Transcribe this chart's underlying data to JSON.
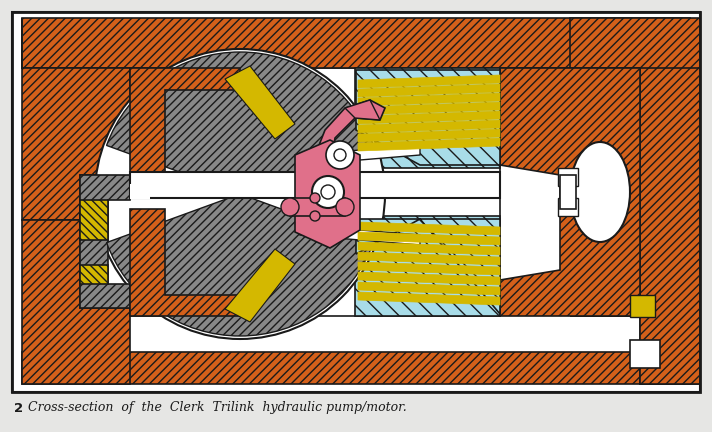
{
  "bg_color": "#e6e6e4",
  "orange": "#d4601a",
  "cyan": "#a8dce8",
  "gray": "#888888",
  "pink": "#e0708a",
  "yellow": "#d4b800",
  "white": "#ffffff",
  "black": "#1a1a1a",
  "caption_num": "2",
  "caption_text": "Cross-section  of  the  Clerk  Trilink  hydraulic pump/motor."
}
